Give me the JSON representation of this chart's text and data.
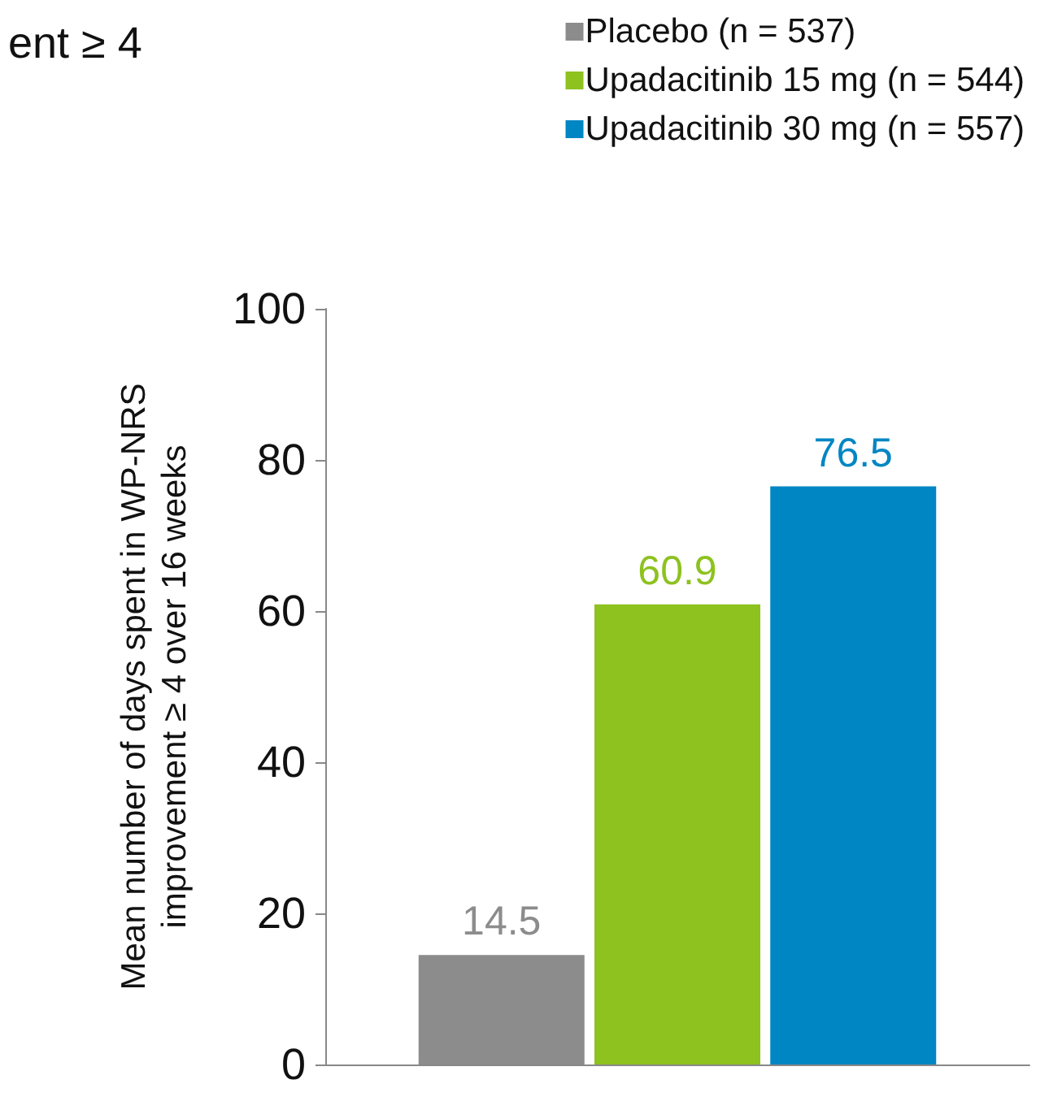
{
  "chart_data": {
    "type": "bar",
    "title": "ent ≥ 4",
    "ylabel": "Mean number of days spent in WP-NRS\nimprovement ≥ 4 over 16 weeks",
    "categories": [
      null
    ],
    "series": [
      {
        "name": "Placebo (n = 537)",
        "color": "#8c8c8c",
        "values": [
          14.5
        ]
      },
      {
        "name": "Upadacitinib 15 mg (n = 544)",
        "color": "#8dc21f",
        "values": [
          60.9
        ]
      },
      {
        "name": "Upadacitinib 30 mg (n = 557)",
        "color": "#0086c3",
        "values": [
          76.5
        ]
      }
    ],
    "ylim": [
      0,
      100
    ],
    "yticks": [
      0,
      20,
      40,
      60,
      80,
      100
    ],
    "grid": false,
    "legend": "top right",
    "data_labels": true
  }
}
